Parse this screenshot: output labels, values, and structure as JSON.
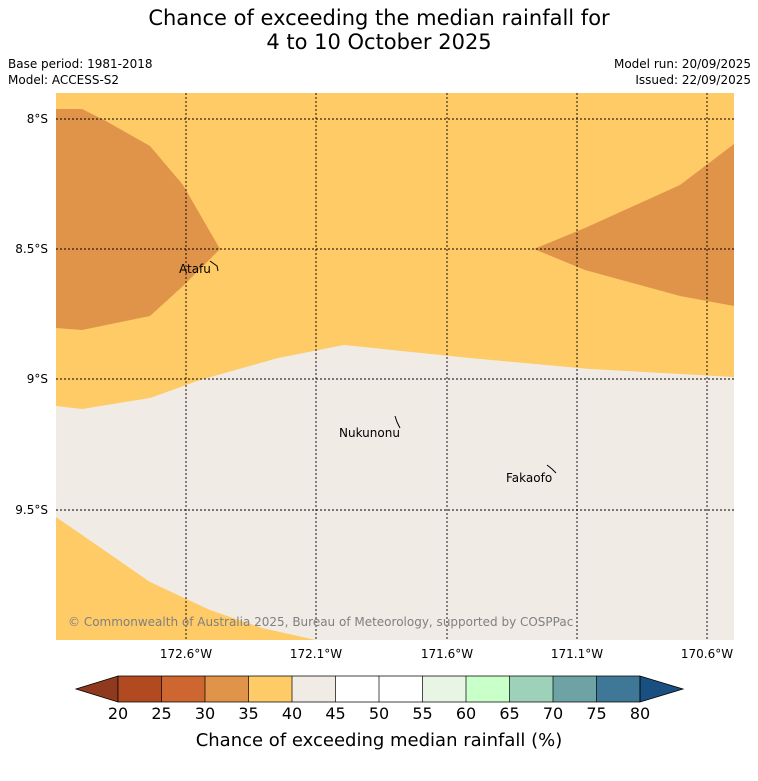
{
  "title": {
    "line1": "Chance of exceeding the median rainfall for",
    "line2": "4 to 10 October 2025"
  },
  "info": {
    "base_period": "Base period: 1981-2018",
    "model": "Model: ACCESS-S2",
    "model_run": "Model run: 20/09/2025",
    "issued": "Issued: 22/09/2025"
  },
  "map": {
    "lat_labels": [
      "8°S",
      "8.5°S",
      "9°S",
      "9.5°S"
    ],
    "lon_labels": [
      "172.6°W",
      "172.1°W",
      "171.6°W",
      "171.1°W",
      "170.6°W"
    ],
    "places": [
      {
        "name": "Atafu"
      },
      {
        "name": "Nukunonu"
      },
      {
        "name": "Fakaofo"
      }
    ],
    "copyright": "© Commonwealth of Australia 2025, Bureau of Meteorology, supported by COSPPac",
    "colors": {
      "c25_30": "#e0944a",
      "c30_35": "#e0944a",
      "c35_40": "#fecb66",
      "c40_45": "#f0ebe4"
    }
  },
  "colorbar": {
    "title": "Chance of exceeding median rainfall (%)",
    "tick_labels": [
      "20",
      "25",
      "30",
      "35",
      "40",
      "45",
      "50",
      "55",
      "60",
      "65",
      "70",
      "75",
      "80"
    ],
    "under_color": "#8f3a1f",
    "over_color": "#1a4f82",
    "colors": [
      "#b24a21",
      "#cd6630",
      "#e0944a",
      "#fecb66",
      "#f0ebe4",
      "#ffffff",
      "#ffffff",
      "#e9f5e4",
      "#c9ffc8",
      "#9ed1b9",
      "#6ea3a6",
      "#3f7796"
    ]
  }
}
